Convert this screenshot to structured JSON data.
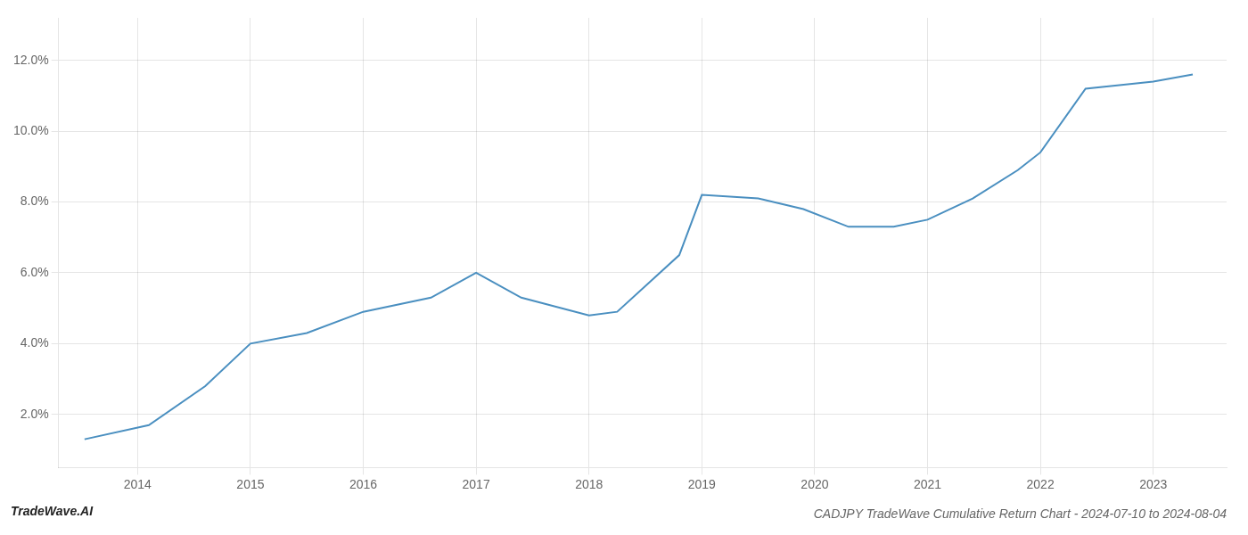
{
  "chart_data": {
    "type": "line",
    "title": "CADJPY TradeWave Cumulative Return Chart - 2024-07-10 to 2024-08-04",
    "annotations": [
      "TradeWave.AI"
    ],
    "x": [
      2013.53,
      2014.1,
      2014.6,
      2015.0,
      2015.5,
      2016.0,
      2016.3,
      2016.6,
      2017.0,
      2017.4,
      2018.0,
      2018.25,
      2018.8,
      2019.0,
      2019.5,
      2019.9,
      2020.3,
      2020.7,
      2021.0,
      2021.4,
      2021.8,
      2022.0,
      2022.4,
      2022.7,
      2023.0,
      2023.35
    ],
    "values": [
      0.013,
      0.017,
      0.028,
      0.04,
      0.043,
      0.049,
      0.051,
      0.053,
      0.06,
      0.053,
      0.048,
      0.049,
      0.065,
      0.082,
      0.081,
      0.078,
      0.073,
      0.073,
      0.075,
      0.081,
      0.089,
      0.094,
      0.112,
      0.113,
      0.114,
      0.116
    ],
    "color": "#4a8fc0",
    "xlim": [
      2013.3,
      2023.65
    ],
    "ylim": [
      0.005,
      0.132
    ],
    "xticks": [
      2014,
      2015,
      2016,
      2017,
      2018,
      2019,
      2020,
      2021,
      2022,
      2023
    ],
    "yticks": [
      {
        "value": 0.02,
        "label": "2.0%"
      },
      {
        "value": 0.04,
        "label": "4.0%"
      },
      {
        "value": 0.06,
        "label": "6.0%"
      },
      {
        "value": 0.08,
        "label": "8.0%"
      },
      {
        "value": 0.1,
        "label": "10.0%"
      },
      {
        "value": 0.12,
        "label": "12.0%"
      }
    ],
    "grid": true
  }
}
